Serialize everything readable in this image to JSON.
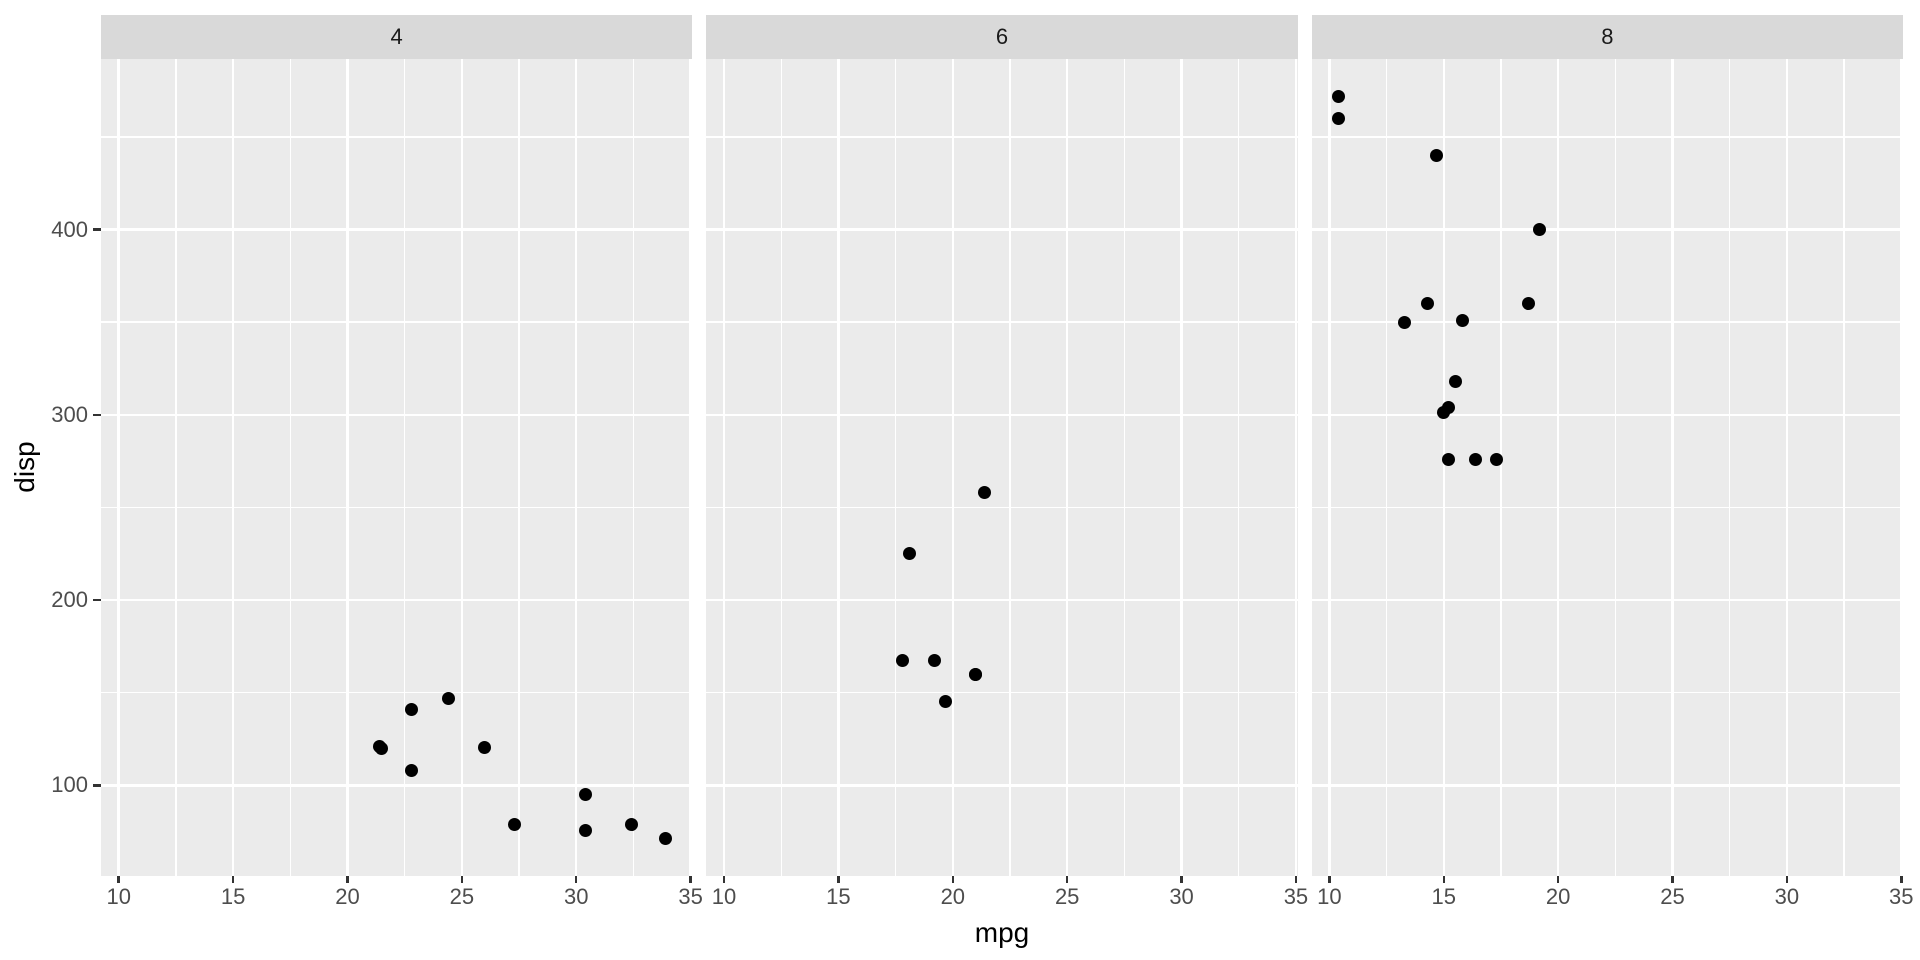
{
  "chart_data": {
    "type": "scatter",
    "title": "",
    "xlabel": "mpg",
    "ylabel": "disp",
    "legend": "none",
    "grid": true,
    "xlim": [
      9.225,
      35.075
    ],
    "ylim": [
      51.055,
      492.045
    ],
    "x_breaks": [
      10,
      15,
      20,
      25,
      30,
      35
    ],
    "x_minor_breaks": [
      12.5,
      17.5,
      22.5,
      27.5,
      32.5
    ],
    "y_breaks": [
      100,
      200,
      300,
      400
    ],
    "y_minor_breaks": [
      150,
      250,
      350,
      450
    ],
    "facets": [
      {
        "label": "4",
        "points": [
          [
            22.8,
            108.0
          ],
          [
            24.4,
            146.7
          ],
          [
            22.8,
            140.8
          ],
          [
            32.4,
            78.7
          ],
          [
            30.4,
            75.7
          ],
          [
            33.9,
            71.1
          ],
          [
            21.5,
            120.1
          ],
          [
            27.3,
            79.0
          ],
          [
            26.0,
            120.3
          ],
          [
            30.4,
            95.1
          ],
          [
            21.4,
            121.0
          ]
        ]
      },
      {
        "label": "6",
        "points": [
          [
            21.0,
            160.0
          ],
          [
            21.0,
            160.0
          ],
          [
            21.4,
            258.0
          ],
          [
            18.1,
            225.0
          ],
          [
            19.2,
            167.6
          ],
          [
            17.8,
            167.6
          ],
          [
            19.7,
            145.0
          ]
        ]
      },
      {
        "label": "8",
        "points": [
          [
            18.7,
            360.0
          ],
          [
            14.3,
            360.0
          ],
          [
            16.4,
            275.8
          ],
          [
            17.3,
            275.8
          ],
          [
            15.2,
            275.8
          ],
          [
            10.4,
            472.0
          ],
          [
            10.4,
            460.0
          ],
          [
            14.7,
            440.0
          ],
          [
            15.5,
            318.0
          ],
          [
            15.2,
            304.0
          ],
          [
            13.3,
            350.0
          ],
          [
            19.2,
            400.0
          ],
          [
            15.8,
            351.0
          ],
          [
            15.0,
            301.0
          ]
        ]
      }
    ],
    "colors": {
      "point": "#000000",
      "panel_bg": "#EBEBEB",
      "strip_bg": "#D9D9D9",
      "strip_text": "#1A1A1A",
      "grid": "#FFFFFF",
      "axis_text": "#4D4D4D",
      "tick_mark": "#333333",
      "axis_title": "#000000",
      "plot_bg": "#FFFFFF"
    }
  }
}
